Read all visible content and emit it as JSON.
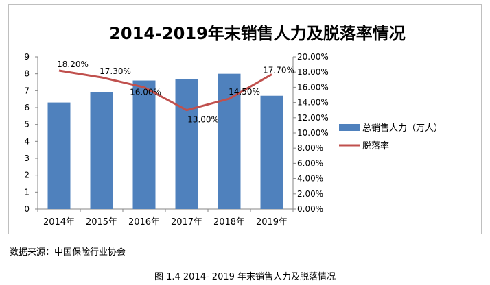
{
  "chart_data": {
    "type": "bar",
    "title": "2014-2019年末销售人力及脱落率情况",
    "categories": [
      "2014年",
      "2015年",
      "2016年",
      "2017年",
      "2018年",
      "2019年"
    ],
    "series": [
      {
        "name": "总销售人力（万人）",
        "type": "bar",
        "axis": "left",
        "color": "#4F81BD",
        "values": [
          6.3,
          6.9,
          7.6,
          7.7,
          8.0,
          6.7
        ]
      },
      {
        "name": "脱落率",
        "type": "line",
        "axis": "right",
        "color": "#C0504D",
        "values": [
          18.2,
          17.3,
          16.0,
          13.0,
          14.5,
          17.7
        ],
        "labels": [
          "18.20%",
          "17.30%",
          "16.00%",
          "13.00%",
          "14.50%",
          "17.70%"
        ]
      }
    ],
    "y_left": {
      "ylim": [
        0,
        9
      ],
      "ticks": [
        "0",
        "1",
        "2",
        "3",
        "4",
        "5",
        "6",
        "7",
        "8",
        "9"
      ]
    },
    "y_right": {
      "ylim": [
        0,
        20
      ],
      "ticks": [
        "0.00%",
        "2.00%",
        "4.00%",
        "6.00%",
        "8.00%",
        "10.00%",
        "12.00%",
        "14.00%",
        "16.00%",
        "18.00%",
        "20.00%"
      ]
    },
    "grid": false,
    "legend_position": "right"
  },
  "source_note": "数据来源：中国保险行业协会",
  "figure_caption": "图 1.4 2014- 2019 年末销售人力及脱落情况"
}
